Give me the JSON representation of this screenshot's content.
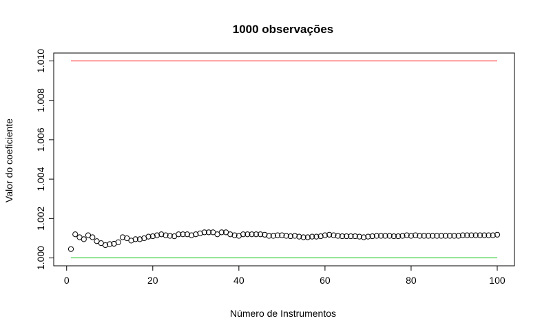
{
  "chart_data": {
    "type": "scatter",
    "title": "1000 observações",
    "xlabel": "Número de Instrumentos",
    "ylabel": "Valor do coeficiente",
    "xlim": [
      -3,
      104
    ],
    "ylim": [
      0.9996,
      1.0104
    ],
    "xticks": [
      0,
      20,
      40,
      60,
      80,
      100
    ],
    "yticks": [
      1.0,
      1.002,
      1.004,
      1.006,
      1.008,
      1.01
    ],
    "ytick_labels": [
      "1.000",
      "1.002",
      "1.004",
      "1.006",
      "1.008",
      "1.010"
    ],
    "xtick_labels": [
      "0",
      "20",
      "40",
      "60",
      "80",
      "100"
    ],
    "grid": false,
    "reference_lines": [
      {
        "y": 1.01,
        "x": [
          1,
          100
        ],
        "color": "#ff0000"
      },
      {
        "y": 1.0,
        "x": [
          1,
          100
        ],
        "color": "#00bb00"
      }
    ],
    "series": [
      {
        "marker": "open-circle",
        "color": "#000000",
        "x": [
          1,
          2,
          3,
          4,
          5,
          6,
          7,
          8,
          9,
          10,
          11,
          12,
          13,
          14,
          15,
          16,
          17,
          18,
          19,
          20,
          21,
          22,
          23,
          24,
          25,
          26,
          27,
          28,
          29,
          30,
          31,
          32,
          33,
          34,
          35,
          36,
          37,
          38,
          39,
          40,
          41,
          42,
          43,
          44,
          45,
          46,
          47,
          48,
          49,
          50,
          51,
          52,
          53,
          54,
          55,
          56,
          57,
          58,
          59,
          60,
          61,
          62,
          63,
          64,
          65,
          66,
          67,
          68,
          69,
          70,
          71,
          72,
          73,
          74,
          75,
          76,
          77,
          78,
          79,
          80,
          81,
          82,
          83,
          84,
          85,
          86,
          87,
          88,
          89,
          90,
          91,
          92,
          93,
          94,
          95,
          96,
          97,
          98,
          99,
          100
        ],
        "y": [
          1.00045,
          1.0012,
          1.00105,
          1.00095,
          1.00115,
          1.00105,
          1.00085,
          1.00075,
          1.00065,
          1.0007,
          1.00072,
          1.0008,
          1.00105,
          1.001,
          1.00088,
          1.00095,
          1.00095,
          1.001,
          1.00108,
          1.0011,
          1.00115,
          1.0012,
          1.00115,
          1.00112,
          1.0011,
          1.0012,
          1.0012,
          1.0012,
          1.00115,
          1.0012,
          1.00125,
          1.0013,
          1.0013,
          1.0013,
          1.0012,
          1.0013,
          1.0013,
          1.0012,
          1.00115,
          1.00112,
          1.0012,
          1.0012,
          1.0012,
          1.0012,
          1.0012,
          1.00118,
          1.00112,
          1.00112,
          1.00115,
          1.00115,
          1.00112,
          1.0011,
          1.00112,
          1.00108,
          1.00105,
          1.00105,
          1.00108,
          1.00108,
          1.0011,
          1.00115,
          1.00118,
          1.00115,
          1.00112,
          1.0011,
          1.0011,
          1.0011,
          1.0011,
          1.00108,
          1.00105,
          1.00108,
          1.0011,
          1.00112,
          1.00112,
          1.00112,
          1.00112,
          1.0011,
          1.0011,
          1.00112,
          1.00115,
          1.00112,
          1.00115,
          1.00112,
          1.00112,
          1.00112,
          1.00112,
          1.00112,
          1.00112,
          1.00112,
          1.00112,
          1.00112,
          1.00112,
          1.00115,
          1.00115,
          1.00115,
          1.00115,
          1.00115,
          1.00115,
          1.00115,
          1.00115,
          1.00118
        ]
      }
    ]
  }
}
